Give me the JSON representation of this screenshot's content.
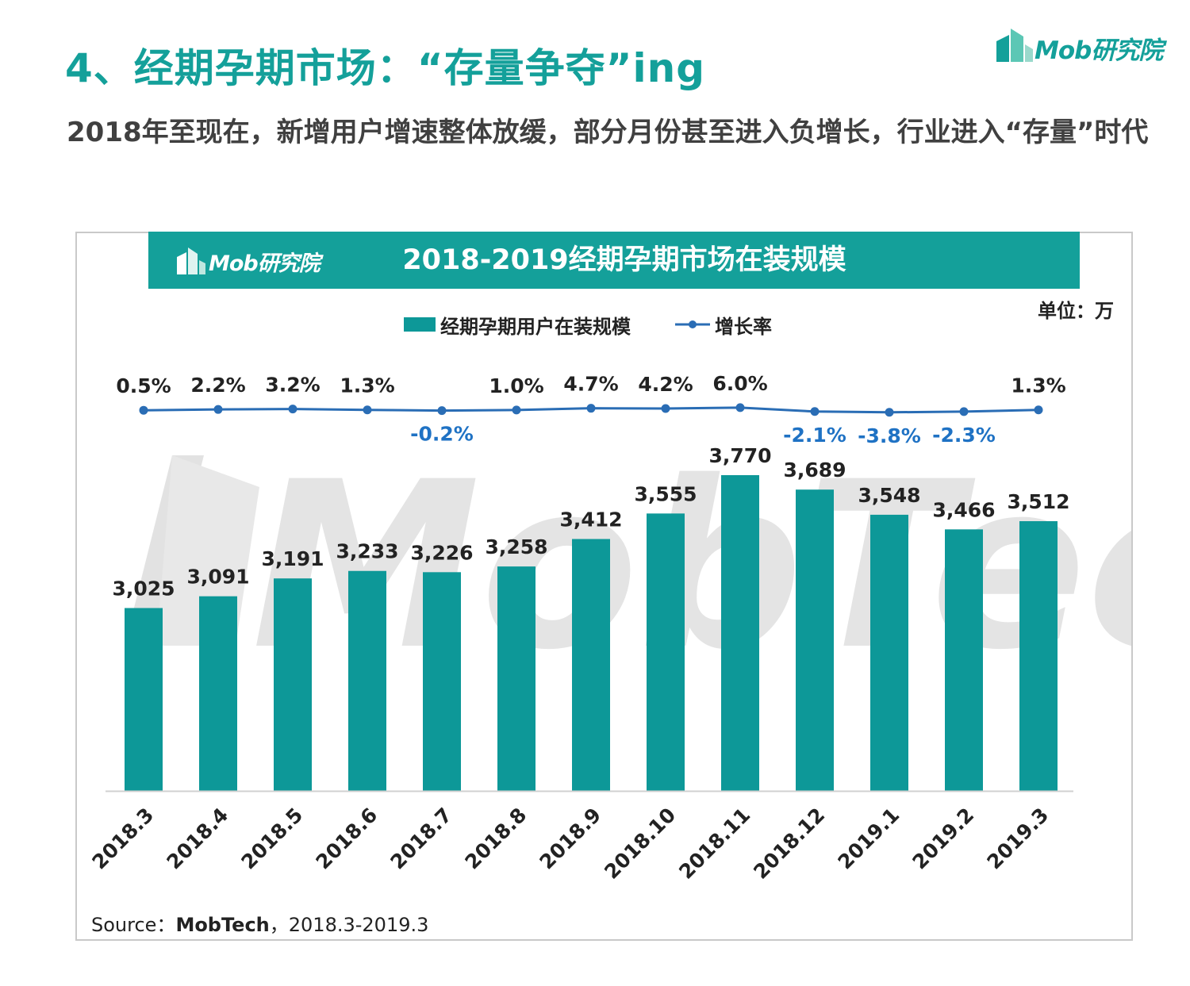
{
  "header": {
    "title": "4、经期孕期市场：“存量争夺”ing",
    "subtitle": "2018年至现在，新增用户增速整体放缓，部分月份甚至进入负增长，行业进入“存量”时代",
    "brand": "Mob研究院"
  },
  "watermark": "MobTech",
  "colors": {
    "accent": "#14a09a",
    "bar": "#0d9898",
    "line": "#2a6db5",
    "negative_label": "#1f72c4"
  },
  "chart_data": {
    "type": "bar",
    "title": "2018-2019经期孕期市场在装规模",
    "unit": "单位：万",
    "legend_position": "top",
    "categories": [
      "2018.3",
      "2018.4",
      "2018.5",
      "2018.6",
      "2018.7",
      "2018.8",
      "2018.9",
      "2018.10",
      "2018.11",
      "2018.12",
      "2019.1",
      "2019.2",
      "2019.3"
    ],
    "series": [
      {
        "name": "经期孕期用户在装规模",
        "type": "bar",
        "values": [
          3025,
          3091,
          3191,
          3233,
          3226,
          3258,
          3412,
          3555,
          3770,
          3689,
          3548,
          3466,
          3512
        ],
        "labels": [
          "3,025",
          "3,091",
          "3,191",
          "3,233",
          "3,226",
          "3,258",
          "3,412",
          "3,555",
          "3,770",
          "3,689",
          "3,548",
          "3,466",
          "3,512"
        ]
      },
      {
        "name": "增长率",
        "type": "line",
        "values": [
          0.5,
          2.2,
          3.2,
          1.3,
          -0.2,
          1.0,
          4.7,
          4.2,
          6.0,
          -2.1,
          -3.8,
          -2.3,
          1.3
        ],
        "labels": [
          "0.5%",
          "2.2%",
          "3.2%",
          "1.3%",
          "-0.2%",
          "1.0%",
          "4.7%",
          "4.2%",
          "6.0%",
          "-2.1%",
          "-3.8%",
          "-2.3%",
          "1.3%"
        ]
      }
    ],
    "ylim": [
      0,
      4000
    ],
    "grid": false
  },
  "source": {
    "prefix": "Source：",
    "name": "MobTech",
    "range": "，2018.3-2019.3"
  }
}
